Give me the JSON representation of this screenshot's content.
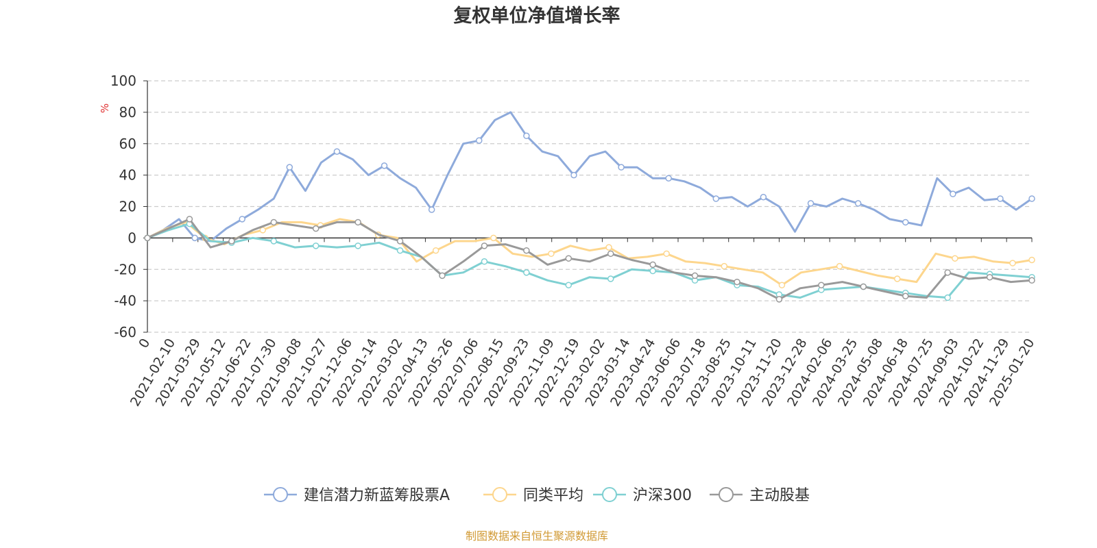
{
  "chart_data": {
    "type": "line",
    "title": "复权单位净值增长率",
    "ylabel": "%",
    "ylim": [
      -60,
      100
    ],
    "yticks": [
      100,
      80,
      60,
      40,
      20,
      0,
      -20,
      -40,
      -60
    ],
    "x_ticks": [
      "0",
      "2021-02-10",
      "2021-03-29",
      "2021-05-12",
      "2021-06-22",
      "2021-07-30",
      "2021-09-08",
      "2021-10-27",
      "2021-12-06",
      "2022-01-14",
      "2022-03-02",
      "2022-04-13",
      "2022-05-26",
      "2022-07-06",
      "2022-08-15",
      "2022-09-23",
      "2022-11-09",
      "2022-12-19",
      "2023-02-02",
      "2023-03-14",
      "2023-04-24",
      "2023-06-06",
      "2023-07-18",
      "2023-08-25",
      "2023-10-11",
      "2023-11-20",
      "2023-12-28",
      "2024-02-06",
      "2024-03-25",
      "2024-05-08",
      "2024-06-18",
      "2024-07-25",
      "2024-09-03",
      "2024-10-22",
      "2024-11-29",
      "2025-01-20"
    ],
    "grid": true,
    "legend_position": "bottom",
    "series": [
      {
        "name": "建信潜力新蓝筹股票A",
        "color": "#8eaadb",
        "values": [
          0,
          5,
          12,
          0,
          -2,
          6,
          12,
          18,
          25,
          45,
          30,
          48,
          55,
          50,
          40,
          46,
          38,
          32,
          18,
          40,
          60,
          62,
          75,
          80,
          65,
          55,
          52,
          40,
          52,
          55,
          45,
          45,
          38,
          38,
          36,
          32,
          25,
          26,
          20,
          26,
          20,
          4,
          22,
          20,
          25,
          22,
          18,
          12,
          10,
          8,
          38,
          28,
          32,
          24,
          25,
          18,
          25
        ]
      },
      {
        "name": "同类平均",
        "color": "#fdd68d",
        "values": [
          0,
          6,
          10,
          0,
          -4,
          2,
          5,
          10,
          10,
          8,
          12,
          10,
          2,
          0,
          -15,
          -8,
          -2,
          -2,
          0,
          -10,
          -12,
          -10,
          -5,
          -8,
          -6,
          -13,
          -12,
          -10,
          -15,
          -16,
          -18,
          -20,
          -22,
          -30,
          -22,
          -20,
          -18,
          -21,
          -24,
          -26,
          -28,
          -10,
          -13,
          -12,
          -15,
          -16,
          -14
        ]
      },
      {
        "name": "沪深300",
        "color": "#7fd0d2",
        "values": [
          0,
          5,
          9,
          -2,
          -3,
          0,
          -2,
          -6,
          -5,
          -6,
          -5,
          -3,
          -8,
          -12,
          -24,
          -22,
          -15,
          -18,
          -22,
          -27,
          -30,
          -25,
          -26,
          -20,
          -21,
          -22,
          -27,
          -25,
          -30,
          -31,
          -36,
          -38,
          -33,
          -32,
          -31,
          -33,
          -35,
          -37,
          -38,
          -22,
          -23,
          -24,
          -25
        ]
      },
      {
        "name": "主动股基",
        "color": "#999999",
        "values": [
          0,
          6,
          12,
          -6,
          -2,
          5,
          10,
          8,
          6,
          10,
          10,
          2,
          -2,
          -12,
          -24,
          -15,
          -5,
          -4,
          -8,
          -17,
          -13,
          -15,
          -10,
          -14,
          -17,
          -22,
          -24,
          -25,
          -28,
          -32,
          -39,
          -32,
          -30,
          -28,
          -31,
          -34,
          -37,
          -38,
          -22,
          -26,
          -25,
          -28,
          -27
        ]
      }
    ],
    "legend": [
      "建信潜力新蓝筹股票A",
      "同类平均",
      "沪深300",
      "主动股基"
    ]
  },
  "footer": {
    "source": "制图数据来自恒生聚源数据库"
  }
}
